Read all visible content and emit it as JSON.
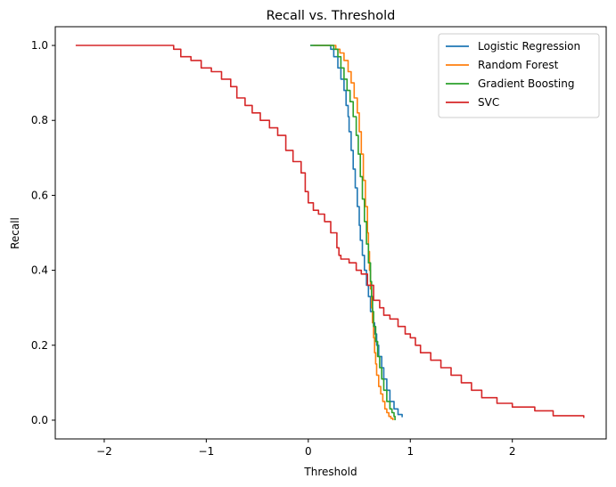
{
  "chart_data": {
    "type": "line",
    "title": "Recall vs. Threshold",
    "xlabel": "Threshold",
    "ylabel": "Recall",
    "xlim": [
      -2.48,
      2.92
    ],
    "ylim": [
      -0.05,
      1.05
    ],
    "xticks": [
      -2,
      -1,
      0,
      1,
      2
    ],
    "xtick_labels": [
      "−2",
      "−1",
      "0",
      "1",
      "2"
    ],
    "yticks": [
      0.0,
      0.2,
      0.4,
      0.6,
      0.8,
      1.0
    ],
    "ytick_labels": [
      "0.0",
      "0.2",
      "0.4",
      "0.6",
      "0.8",
      "1.0"
    ],
    "grid": false,
    "legend_position": "upper right",
    "series": [
      {
        "name": "Logistic Regression",
        "color": "#1f77b4",
        "x": [
          0.02,
          0.2,
          0.22,
          0.25,
          0.29,
          0.32,
          0.35,
          0.37,
          0.39,
          0.4,
          0.42,
          0.44,
          0.46,
          0.48,
          0.5,
          0.51,
          0.53,
          0.55,
          0.57,
          0.59,
          0.61,
          0.63,
          0.65,
          0.67,
          0.69,
          0.72,
          0.74,
          0.77,
          0.8,
          0.84,
          0.88,
          0.92
        ],
        "y": [
          1.0,
          1.0,
          0.99,
          0.97,
          0.94,
          0.91,
          0.88,
          0.84,
          0.81,
          0.77,
          0.72,
          0.67,
          0.62,
          0.57,
          0.52,
          0.48,
          0.44,
          0.4,
          0.36,
          0.33,
          0.29,
          0.26,
          0.23,
          0.2,
          0.17,
          0.14,
          0.11,
          0.08,
          0.05,
          0.03,
          0.015,
          0.008
        ]
      },
      {
        "name": "Random Forest",
        "color": "#ff7f0e",
        "x": [
          0.05,
          0.22,
          0.27,
          0.31,
          0.35,
          0.39,
          0.42,
          0.45,
          0.48,
          0.5,
          0.52,
          0.54,
          0.56,
          0.58,
          0.59,
          0.6,
          0.61,
          0.62,
          0.63,
          0.64,
          0.65,
          0.66,
          0.67,
          0.69,
          0.71,
          0.73,
          0.75,
          0.77,
          0.79,
          0.81,
          0.83
        ],
        "y": [
          1.0,
          1.0,
          0.99,
          0.98,
          0.96,
          0.93,
          0.9,
          0.86,
          0.82,
          0.77,
          0.71,
          0.64,
          0.57,
          0.5,
          0.45,
          0.4,
          0.35,
          0.3,
          0.26,
          0.22,
          0.18,
          0.15,
          0.12,
          0.09,
          0.07,
          0.05,
          0.03,
          0.02,
          0.01,
          0.005,
          0.0
        ]
      },
      {
        "name": "Gradient Boosting",
        "color": "#2ca02c",
        "x": [
          0.02,
          0.21,
          0.25,
          0.29,
          0.32,
          0.35,
          0.38,
          0.41,
          0.44,
          0.47,
          0.49,
          0.51,
          0.53,
          0.55,
          0.57,
          0.59,
          0.61,
          0.62,
          0.63,
          0.64,
          0.66,
          0.68,
          0.7,
          0.72,
          0.74,
          0.77,
          0.8,
          0.82,
          0.84,
          0.85
        ],
        "y": [
          1.0,
          1.0,
          0.99,
          0.97,
          0.94,
          0.91,
          0.88,
          0.85,
          0.81,
          0.76,
          0.71,
          0.65,
          0.59,
          0.53,
          0.47,
          0.42,
          0.37,
          0.33,
          0.29,
          0.25,
          0.21,
          0.17,
          0.14,
          0.11,
          0.08,
          0.05,
          0.03,
          0.02,
          0.01,
          0.0
        ]
      },
      {
        "name": "SVC",
        "color": "#d62728",
        "x": [
          -2.28,
          -1.8,
          -1.4,
          -1.32,
          -1.25,
          -1.15,
          -1.05,
          -0.95,
          -0.85,
          -0.76,
          -0.7,
          -0.62,
          -0.55,
          -0.47,
          -0.38,
          -0.3,
          -0.22,
          -0.15,
          -0.07,
          -0.03,
          0.0,
          0.05,
          0.1,
          0.16,
          0.22,
          0.28,
          0.3,
          0.32,
          0.4,
          0.47,
          0.52,
          0.58,
          0.64,
          0.7,
          0.74,
          0.8,
          0.88,
          0.95,
          1.0,
          1.05,
          1.1,
          1.2,
          1.3,
          1.4,
          1.5,
          1.6,
          1.7,
          1.85,
          2.0,
          2.22,
          2.4,
          2.7
        ],
        "y": [
          1.0,
          1.0,
          1.0,
          0.99,
          0.97,
          0.96,
          0.94,
          0.93,
          0.91,
          0.89,
          0.86,
          0.84,
          0.82,
          0.8,
          0.78,
          0.76,
          0.72,
          0.69,
          0.66,
          0.61,
          0.58,
          0.56,
          0.55,
          0.53,
          0.5,
          0.46,
          0.44,
          0.43,
          0.42,
          0.4,
          0.39,
          0.36,
          0.32,
          0.3,
          0.28,
          0.27,
          0.25,
          0.23,
          0.22,
          0.2,
          0.18,
          0.16,
          0.14,
          0.12,
          0.1,
          0.08,
          0.06,
          0.045,
          0.035,
          0.025,
          0.012,
          0.006
        ]
      }
    ]
  }
}
